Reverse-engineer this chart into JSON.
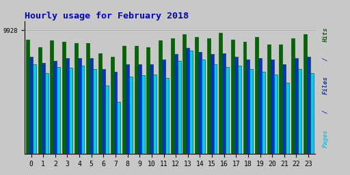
{
  "title": "Hourly usage for February 2018",
  "title_color": "#0000cc",
  "title_fontsize": 9.5,
  "xlabel_values": [
    0,
    1,
    2,
    3,
    4,
    5,
    6,
    7,
    8,
    9,
    10,
    11,
    12,
    13,
    14,
    15,
    16,
    17,
    18,
    19,
    20,
    21,
    22,
    23
  ],
  "ytick_label": "9928",
  "background_color": "#c8c8c8",
  "plot_bg_color": "#c8c8c8",
  "bar_width": 0.28,
  "pages_color": "#00ccff",
  "files_color": "#0033cc",
  "hits_color": "#006600",
  "hits": [
    9200,
    8600,
    9100,
    9000,
    8900,
    8900,
    8100,
    7800,
    8700,
    8700,
    8600,
    9100,
    9300,
    9600,
    9400,
    9300,
    9700,
    9200,
    9000,
    9400,
    8800,
    8800,
    9300,
    9600
  ],
  "files": [
    7800,
    7300,
    7500,
    7700,
    7700,
    7700,
    6800,
    6600,
    7200,
    7200,
    7200,
    7600,
    8000,
    8500,
    8200,
    8000,
    8100,
    7800,
    7600,
    7700,
    7600,
    7200,
    7700,
    7800
  ],
  "pages": [
    7200,
    6500,
    7000,
    6900,
    7100,
    6800,
    5500,
    4200,
    6200,
    6300,
    6400,
    6100,
    7500,
    8300,
    7600,
    7200,
    7000,
    7100,
    6800,
    6600,
    6400,
    5700,
    6800,
    6500
  ],
  "ymin": 0,
  "ymax": 9928,
  "bar_edge_color": "#004400",
  "ylabel_pages_color": "#00ccff",
  "ylabel_files_color": "#0033cc",
  "ylabel_hits_color": "#006600",
  "figsize": [
    5.12,
    2.56
  ],
  "dpi": 100
}
